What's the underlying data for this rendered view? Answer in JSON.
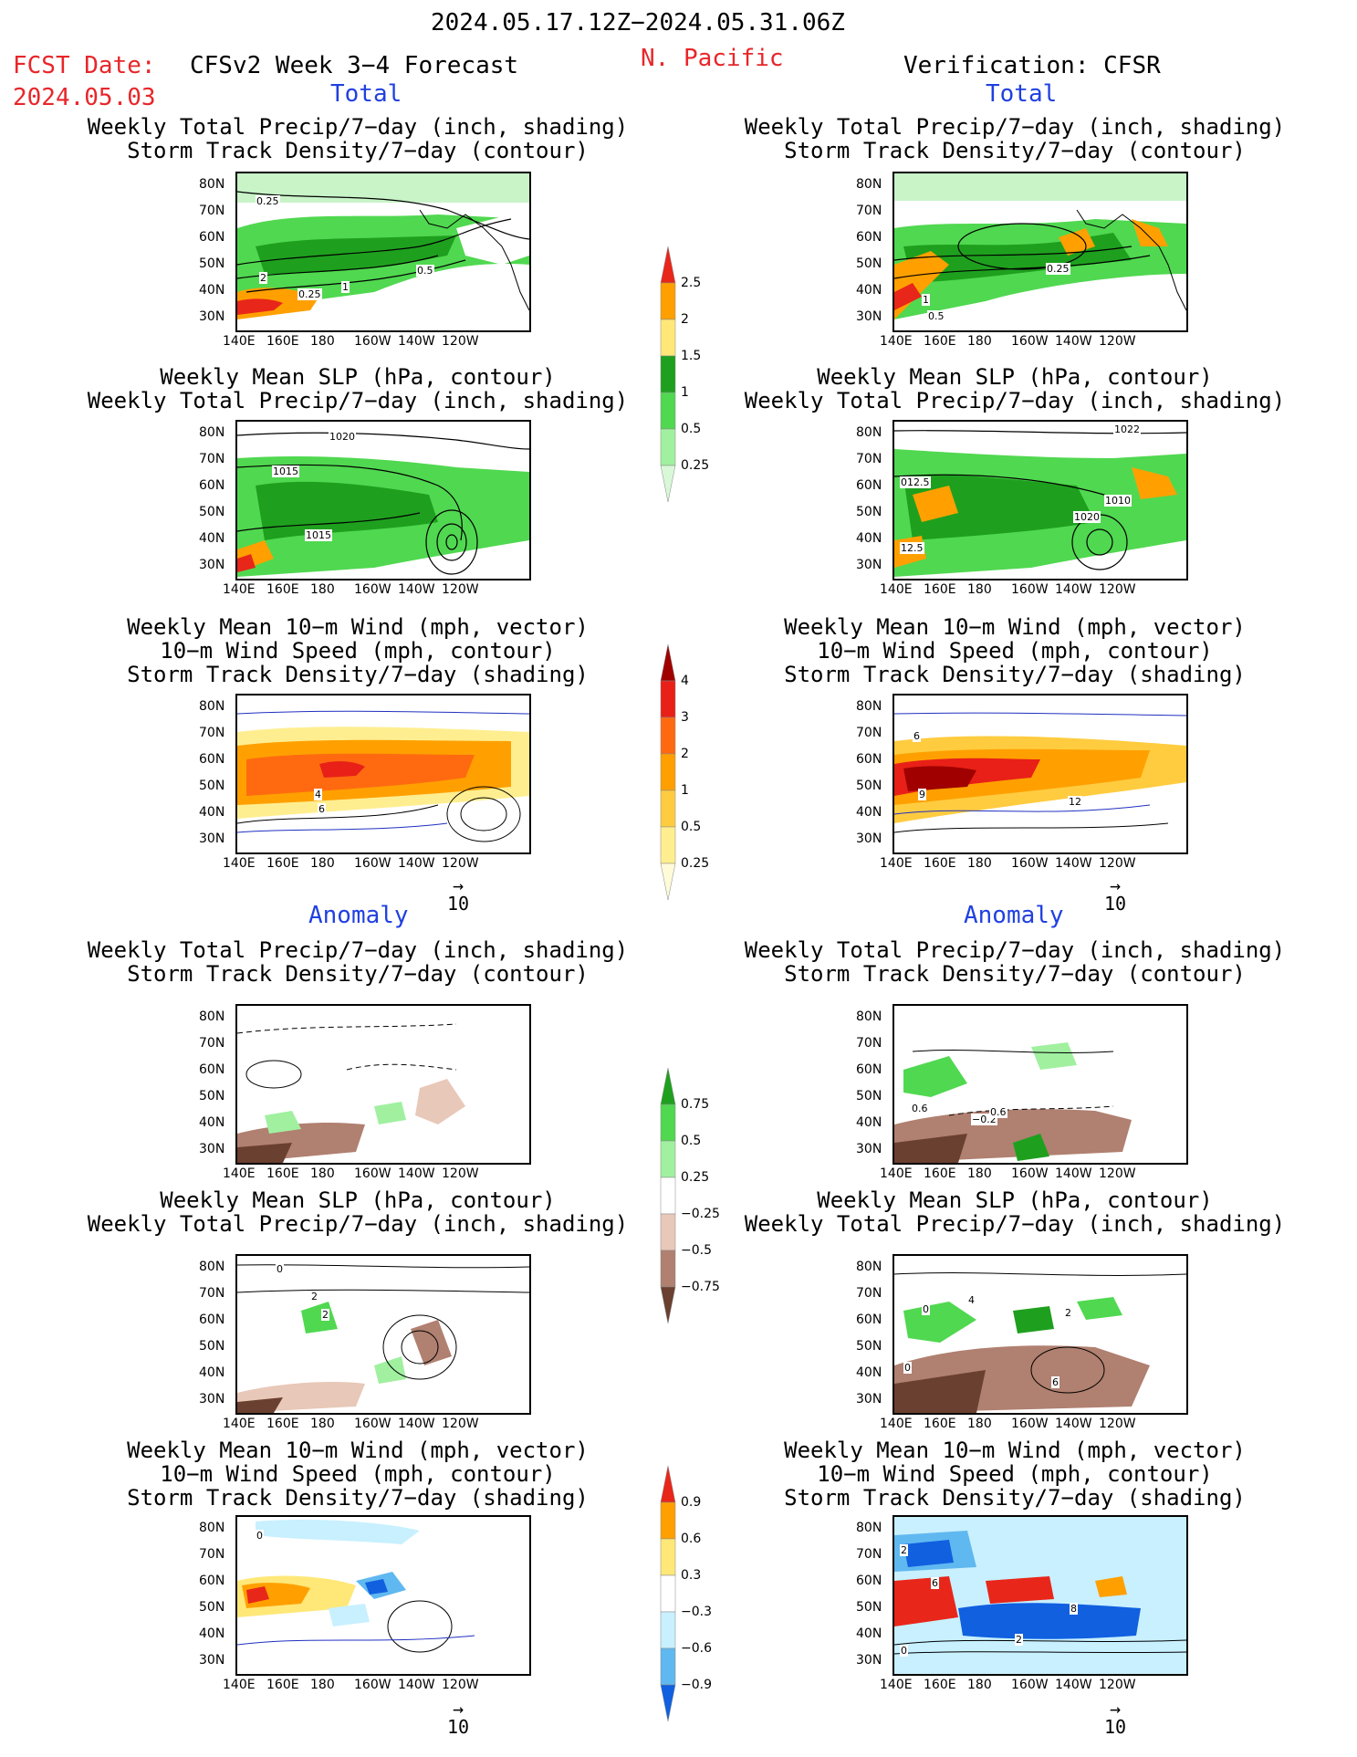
{
  "header": {
    "period": "2024.05.17.12Z−2024.05.31.06Z",
    "fcst_label": "FCST Date:",
    "fcst_date": "2024.05.03",
    "model": "CFSv2 Week 3−4 Forecast",
    "region": "N. Pacific",
    "verification": "Verification: CFSR"
  },
  "sections": {
    "total": "Total",
    "anomaly": "Anomaly"
  },
  "panel_titles": {
    "precip_storm": "Weekly Total Precip/7−day (inch, shading)\nStorm Track Density/7−day (contour)",
    "slp_precip": "Weekly Mean SLP (hPa, contour)\nWeekly Total Precip/7−day (inch, shading)",
    "wind_storm": "Weekly Mean 10−m Wind (mph, vector)\n10−m Wind Speed (mph, contour)\nStorm Track Density/7−day (shading)"
  },
  "axes": {
    "lat_ticks": [
      "80N",
      "70N",
      "60N",
      "50N",
      "40N",
      "30N"
    ],
    "lon_ticks": [
      "140E",
      "160E",
      "180",
      "160W",
      "140W",
      "120W"
    ]
  },
  "vector_ref": "10",
  "colorbars": {
    "precip_total": {
      "labels": [
        "2.5",
        "2",
        "1.5",
        "1",
        "0.5",
        "0.25"
      ],
      "colors": [
        "#e8261a",
        "#ffa000",
        "#ffe878",
        "#1ea01e",
        "#50d850",
        "#a0f0a0",
        "#d8f8d8"
      ]
    },
    "storm_total": {
      "labels": [
        "4",
        "3",
        "2",
        "1",
        "0.5",
        "0.25"
      ],
      "colors": [
        "#a00000",
        "#e82018",
        "#ff6a10",
        "#ffa000",
        "#ffcc40",
        "#ffee90",
        "#fffbd8"
      ]
    },
    "precip_anom": {
      "labels": [
        "0.75",
        "0.5",
        "0.25",
        "−0.25",
        "−0.5",
        "−0.75"
      ],
      "colors": [
        "#1ea01e",
        "#50d850",
        "#a0f0a0",
        "#ffffff",
        "#e8c8b8",
        "#b08070",
        "#6a4030"
      ]
    },
    "storm_anom": {
      "labels": [
        "0.9",
        "0.6",
        "0.3",
        "−0.3",
        "−0.6",
        "−0.9"
      ],
      "colors": [
        "#e8261a",
        "#ffa000",
        "#ffe878",
        "#ffffff",
        "#c8f0ff",
        "#60b8f0",
        "#1060e0"
      ]
    }
  },
  "map_labels": {
    "p1_left": [
      "0.25",
      "2",
      "0.25",
      "1",
      "0.5"
    ],
    "p1_right": [
      "0.25",
      "1",
      "0.5"
    ],
    "p2_left": [
      "1020",
      "1015",
      "1015"
    ],
    "p2_right": [
      "1022",
      "012.5",
      "1010",
      "1020",
      "12.5"
    ],
    "p3_left": [
      "4",
      "6"
    ],
    "p3_right": [
      "9",
      "12",
      "6"
    ],
    "p4_right": [
      "0.6",
      "−0.2",
      "0.6"
    ],
    "p5_left": [
      "0",
      "2",
      "2"
    ],
    "p5_right": [
      "0",
      "4",
      "6",
      "2",
      "0"
    ],
    "p6_left": [
      "0"
    ],
    "p6_right": [
      "2",
      "6",
      "8",
      "2",
      "0"
    ]
  }
}
